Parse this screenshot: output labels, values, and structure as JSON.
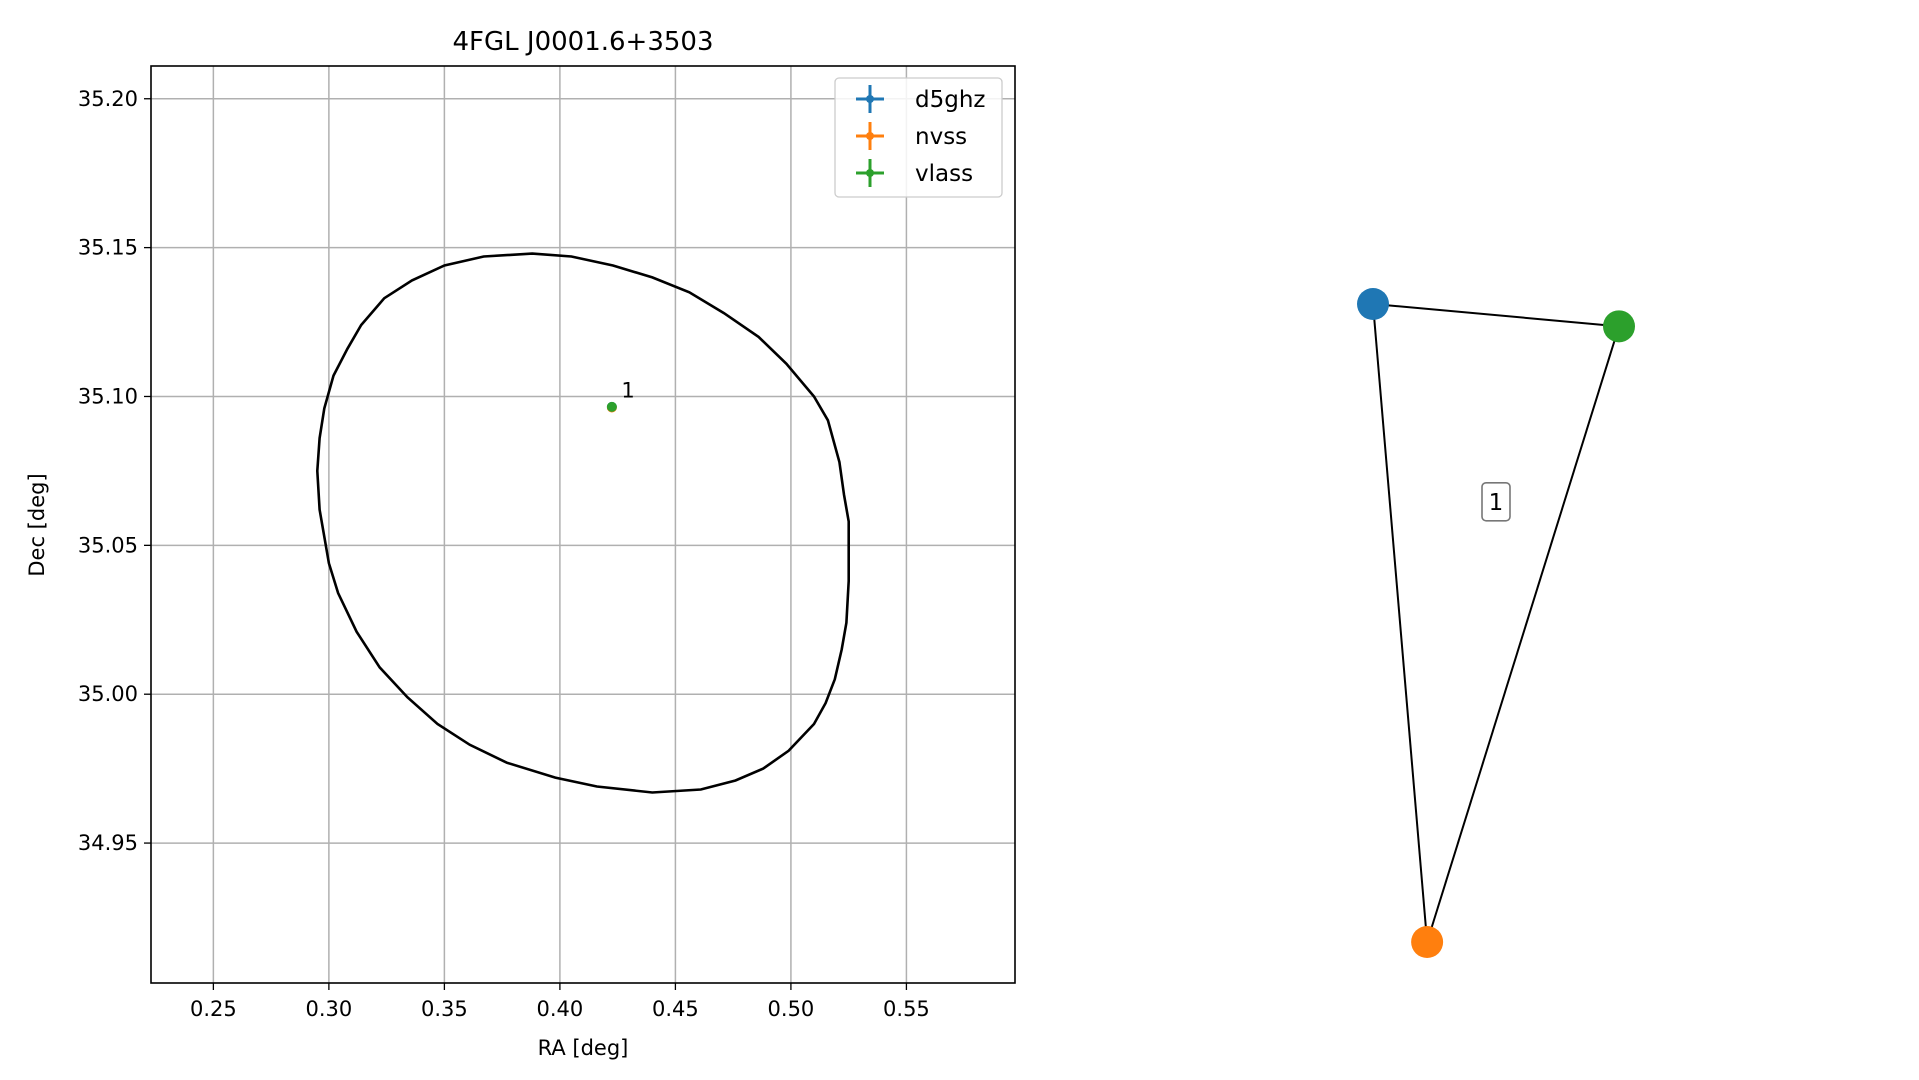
{
  "chart_data": [
    {
      "type": "scatter",
      "title": "4FGL J0001.6+3503",
      "xlabel": "RA [deg]",
      "ylabel": "Dec [deg]",
      "xlim": [
        0.223,
        0.597
      ],
      "ylim": [
        34.903,
        35.211
      ],
      "xticks": [
        0.25,
        0.3,
        0.35,
        0.4,
        0.45,
        0.5,
        0.55
      ],
      "xtick_labels": [
        "0.25",
        "0.30",
        "0.35",
        "0.40",
        "0.45",
        "0.50",
        "0.55"
      ],
      "yticks": [
        34.95,
        35.0,
        35.05,
        35.1,
        35.15,
        35.2
      ],
      "ytick_labels": [
        "34.95",
        "35.00",
        "35.05",
        "35.10",
        "35.15",
        "35.20"
      ],
      "grid": true,
      "legend_position": "top-right",
      "series": [
        {
          "name": "d5ghz",
          "color": "#1f77b4",
          "x": [
            0.4225
          ],
          "y": [
            35.0965
          ]
        },
        {
          "name": "nvss",
          "color": "#ff7f0e",
          "x": [
            0.4225
          ],
          "y": [
            35.0963
          ]
        },
        {
          "name": "vlass",
          "color": "#2ca02c",
          "x": [
            0.4225
          ],
          "y": [
            35.0965
          ]
        }
      ],
      "annotations": [
        {
          "text": "1",
          "x": 0.424,
          "y": 35.099
        }
      ],
      "ellipse": {
        "color": "#000000",
        "points": [
          [
            0.388,
            35.148
          ],
          [
            0.405,
            35.147
          ],
          [
            0.423,
            35.144
          ],
          [
            0.44,
            35.14
          ],
          [
            0.456,
            35.135
          ],
          [
            0.471,
            35.128
          ],
          [
            0.486,
            35.12
          ],
          [
            0.498,
            35.111
          ],
          [
            0.51,
            35.1
          ],
          [
            0.516,
            35.092
          ],
          [
            0.521,
            35.078
          ],
          [
            0.523,
            35.067
          ],
          [
            0.525,
            35.058
          ],
          [
            0.525,
            35.038
          ],
          [
            0.524,
            35.024
          ],
          [
            0.522,
            35.015
          ],
          [
            0.519,
            35.005
          ],
          [
            0.515,
            34.997
          ],
          [
            0.51,
            34.99
          ],
          [
            0.499,
            34.981
          ],
          [
            0.488,
            34.975
          ],
          [
            0.476,
            34.971
          ],
          [
            0.461,
            34.968
          ],
          [
            0.44,
            34.967
          ],
          [
            0.416,
            34.969
          ],
          [
            0.398,
            34.972
          ],
          [
            0.377,
            34.977
          ],
          [
            0.361,
            34.983
          ],
          [
            0.347,
            34.99
          ],
          [
            0.334,
            34.999
          ],
          [
            0.322,
            35.009
          ],
          [
            0.312,
            35.021
          ],
          [
            0.304,
            35.034
          ],
          [
            0.3,
            35.044
          ],
          [
            0.296,
            35.062
          ],
          [
            0.295,
            35.075
          ],
          [
            0.296,
            35.086
          ],
          [
            0.298,
            35.096
          ],
          [
            0.302,
            35.107
          ],
          [
            0.308,
            35.116
          ],
          [
            0.314,
            35.124
          ],
          [
            0.324,
            35.133
          ],
          [
            0.336,
            35.139
          ],
          [
            0.35,
            35.144
          ],
          [
            0.367,
            35.147
          ]
        ]
      }
    },
    {
      "type": "network",
      "nodes": [
        {
          "name": "d5ghz",
          "color": "#1f77b4",
          "x": 0.0,
          "y": 1.0
        },
        {
          "name": "vlass",
          "color": "#2ca02c",
          "x": 1.0,
          "y": 0.965
        },
        {
          "name": "nvss",
          "color": "#ff7f0e",
          "x": 0.22,
          "y": 0.0
        }
      ],
      "edges": [
        [
          "d5ghz",
          "vlass"
        ],
        [
          "d5ghz",
          "nvss"
        ],
        [
          "vlass",
          "nvss"
        ]
      ],
      "labels": [
        {
          "text": "1",
          "x": 0.5,
          "y": 0.69
        }
      ]
    }
  ]
}
